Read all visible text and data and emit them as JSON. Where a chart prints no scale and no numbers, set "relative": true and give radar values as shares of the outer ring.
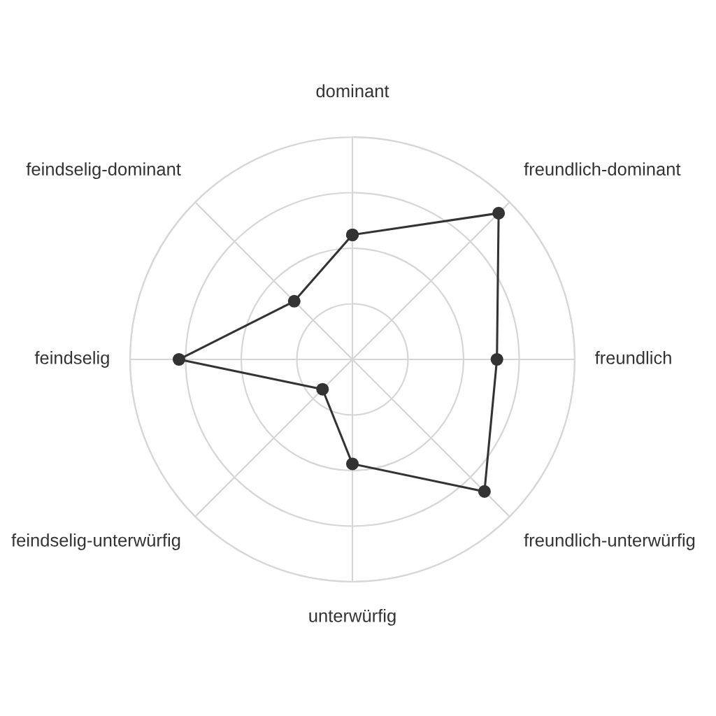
{
  "chart_data": {
    "type": "radar",
    "relative": true,
    "categories": [
      "dominant",
      "freundlich-dominant",
      "freundlich",
      "freundlich-unterwürfig",
      "unterwürfig",
      "feindselig-unterwürfig",
      "feindselig",
      "feindselig-dominant"
    ],
    "series": [
      {
        "color": "#333333",
        "values": [
          0.56,
          0.93,
          0.65,
          0.84,
          0.47,
          0.19,
          0.78,
          0.37
        ]
      }
    ],
    "grid": true,
    "marker": "circle",
    "line_style": "solid"
  }
}
